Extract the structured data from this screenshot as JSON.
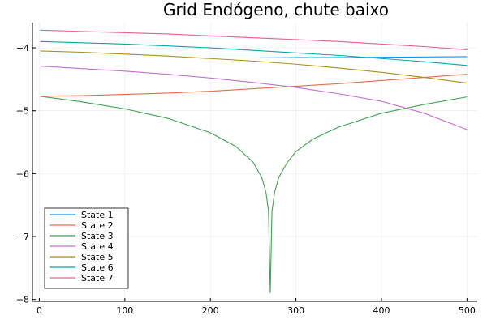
{
  "chart_data": {
    "type": "line",
    "title": "Grid Endógeno, chute baixo",
    "xlabel": "",
    "ylabel": "",
    "xlim": [
      -8,
      512
    ],
    "ylim": [
      -8.03,
      -3.6
    ],
    "xticks": [
      0,
      100,
      200,
      300,
      400,
      500
    ],
    "xtick_labels": [
      "0",
      "100",
      "200",
      "300",
      "400",
      "500"
    ],
    "yticks": [
      -8,
      -7,
      -6,
      -5,
      -4
    ],
    "ytick_labels": [
      "−8",
      "−7",
      "−6",
      "−5",
      "−4"
    ],
    "grid": true,
    "legend_position": "bottom-left",
    "series": [
      {
        "name": "State 1",
        "color": "#009AFA",
        "x": [
          1,
          50,
          100,
          150,
          200,
          250,
          300,
          350,
          400,
          450,
          500
        ],
        "y": [
          -4.16,
          -4.16,
          -4.16,
          -4.16,
          -4.16,
          -4.16,
          -4.155,
          -4.155,
          -4.15,
          -4.145,
          -4.14
        ]
      },
      {
        "name": "State 2",
        "color": "#E36F47",
        "x": [
          1,
          50,
          100,
          150,
          200,
          250,
          300,
          350,
          400,
          450,
          500
        ],
        "y": [
          -4.77,
          -4.76,
          -4.74,
          -4.72,
          -4.69,
          -4.65,
          -4.61,
          -4.57,
          -4.52,
          -4.47,
          -4.42
        ]
      },
      {
        "name": "State 3",
        "color": "#3EA44E",
        "x": [
          1,
          50,
          100,
          150,
          200,
          230,
          250,
          260,
          265,
          268,
          270,
          272,
          275,
          280,
          290,
          300,
          320,
          350,
          400,
          450,
          500
        ],
        "y": [
          -4.77,
          -4.86,
          -4.97,
          -5.12,
          -5.35,
          -5.57,
          -5.82,
          -6.06,
          -6.3,
          -6.6,
          -7.9,
          -6.6,
          -6.3,
          -6.06,
          -5.82,
          -5.65,
          -5.45,
          -5.26,
          -5.04,
          -4.9,
          -4.78
        ]
      },
      {
        "name": "State 4",
        "color": "#C271D2",
        "x": [
          1,
          50,
          100,
          150,
          200,
          250,
          300,
          350,
          400,
          450,
          500
        ],
        "y": [
          -4.29,
          -4.33,
          -4.37,
          -4.42,
          -4.48,
          -4.55,
          -4.63,
          -4.73,
          -4.85,
          -5.04,
          -5.3
        ]
      },
      {
        "name": "State 5",
        "color": "#AC8E18",
        "x": [
          1,
          50,
          100,
          150,
          200,
          250,
          300,
          350,
          400,
          450,
          500
        ],
        "y": [
          -4.05,
          -4.07,
          -4.1,
          -4.13,
          -4.17,
          -4.21,
          -4.26,
          -4.32,
          -4.39,
          -4.47,
          -4.56
        ]
      },
      {
        "name": "State 6",
        "color": "#00A9AD",
        "x": [
          1,
          50,
          100,
          150,
          200,
          250,
          300,
          350,
          400,
          450,
          500
        ],
        "y": [
          -3.9,
          -3.92,
          -3.94,
          -3.97,
          -4.0,
          -4.04,
          -4.08,
          -4.12,
          -4.17,
          -4.22,
          -4.28
        ]
      },
      {
        "name": "State 7",
        "color": "#ED5D92",
        "x": [
          1,
          50,
          100,
          150,
          200,
          250,
          300,
          350,
          400,
          450,
          500
        ],
        "y": [
          -3.72,
          -3.74,
          -3.76,
          -3.78,
          -3.81,
          -3.84,
          -3.87,
          -3.9,
          -3.94,
          -3.98,
          -4.03
        ]
      }
    ]
  }
}
